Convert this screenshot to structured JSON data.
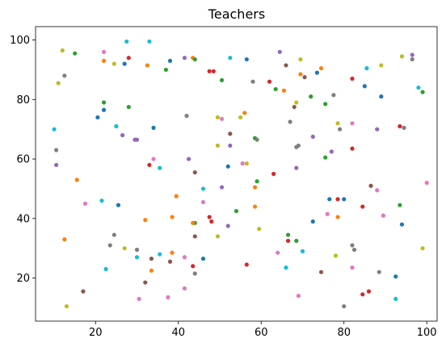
{
  "chart_data": {
    "type": "scatter",
    "title": "Teachers",
    "xlabel": "",
    "ylabel": "",
    "xlim": [
      5.5,
      102.5
    ],
    "ylim": [
      5.5,
      104.5
    ],
    "xticks": [
      20,
      40,
      60,
      80,
      100
    ],
    "yticks": [
      20,
      40,
      60,
      80,
      100
    ],
    "grid": false,
    "colors": [
      "#1f77b4",
      "#ff7f0e",
      "#2ca02c",
      "#d62728",
      "#9467bd",
      "#8c564b",
      "#e377c2",
      "#7f7f7f",
      "#bcbd22",
      "#17becf"
    ],
    "points": [
      {
        "x": 12,
        "y": 96.5,
        "c": 8
      },
      {
        "x": 15,
        "y": 95.5,
        "c": 2
      },
      {
        "x": 22,
        "y": 96,
        "c": 6
      },
      {
        "x": 27.5,
        "y": 99.5,
        "c": 9
      },
      {
        "x": 33,
        "y": 99.5,
        "c": 9
      },
      {
        "x": 11,
        "y": 85.5,
        "c": 8
      },
      {
        "x": 12.5,
        "y": 88,
        "c": 7
      },
      {
        "x": 22,
        "y": 93,
        "c": 1
      },
      {
        "x": 24.5,
        "y": 92,
        "c": 8
      },
      {
        "x": 27,
        "y": 92,
        "c": 0
      },
      {
        "x": 28,
        "y": 94,
        "c": 3
      },
      {
        "x": 32.5,
        "y": 91.5,
        "c": 1
      },
      {
        "x": 37,
        "y": 90,
        "c": 2
      },
      {
        "x": 38,
        "y": 93,
        "c": 0
      },
      {
        "x": 41.5,
        "y": 94,
        "c": 4
      },
      {
        "x": 43.5,
        "y": 94,
        "c": 1
      },
      {
        "x": 44,
        "y": 93.5,
        "c": 2
      },
      {
        "x": 47.5,
        "y": 89.5,
        "c": 3
      },
      {
        "x": 48.5,
        "y": 89.5,
        "c": 3
      },
      {
        "x": 52.5,
        "y": 94,
        "c": 9
      },
      {
        "x": 56.5,
        "y": 93.5,
        "c": 0
      },
      {
        "x": 50.5,
        "y": 86.5,
        "c": 2
      },
      {
        "x": 58,
        "y": 86,
        "c": 7
      },
      {
        "x": 62,
        "y": 86,
        "c": 3
      },
      {
        "x": 64.5,
        "y": 96,
        "c": 4
      },
      {
        "x": 66,
        "y": 91.5,
        "c": 5
      },
      {
        "x": 69.5,
        "y": 93.5,
        "c": 8
      },
      {
        "x": 73.5,
        "y": 89,
        "c": 0
      },
      {
        "x": 74.5,
        "y": 90.5,
        "c": 1
      },
      {
        "x": 69.5,
        "y": 88.5,
        "c": 1
      },
      {
        "x": 70.5,
        "y": 87.5,
        "c": 5
      },
      {
        "x": 63.5,
        "y": 83.5,
        "c": 2
      },
      {
        "x": 65.5,
        "y": 83,
        "c": 1
      },
      {
        "x": 72,
        "y": 81,
        "c": 2
      },
      {
        "x": 68.5,
        "y": 79,
        "c": 8
      },
      {
        "x": 68,
        "y": 77.5,
        "c": 5
      },
      {
        "x": 75.5,
        "y": 78.5,
        "c": 2
      },
      {
        "x": 77.5,
        "y": 81.5,
        "c": 7
      },
      {
        "x": 82,
        "y": 87,
        "c": 3
      },
      {
        "x": 85,
        "y": 84.5,
        "c": 0
      },
      {
        "x": 85.5,
        "y": 90.5,
        "c": 9
      },
      {
        "x": 89,
        "y": 91.5,
        "c": 8
      },
      {
        "x": 94,
        "y": 94.5,
        "c": 8
      },
      {
        "x": 96.5,
        "y": 95,
        "c": 4
      },
      {
        "x": 96.5,
        "y": 93.5,
        "c": 7
      },
      {
        "x": 98,
        "y": 84,
        "c": 9
      },
      {
        "x": 99,
        "y": 82.5,
        "c": 2
      },
      {
        "x": 89,
        "y": 81,
        "c": 0
      },
      {
        "x": 10,
        "y": 70,
        "c": 9
      },
      {
        "x": 20.5,
        "y": 74,
        "c": 0
      },
      {
        "x": 22,
        "y": 79,
        "c": 2
      },
      {
        "x": 22,
        "y": 76.5,
        "c": 0
      },
      {
        "x": 25,
        "y": 71,
        "c": 9
      },
      {
        "x": 28,
        "y": 77.5,
        "c": 2
      },
      {
        "x": 26.5,
        "y": 68,
        "c": 4
      },
      {
        "x": 29.5,
        "y": 66.5,
        "c": 4
      },
      {
        "x": 30,
        "y": 66.5,
        "c": 4
      },
      {
        "x": 34,
        "y": 70.5,
        "c": 0
      },
      {
        "x": 42,
        "y": 74.5,
        "c": 7
      },
      {
        "x": 49.5,
        "y": 74,
        "c": 8
      },
      {
        "x": 50.5,
        "y": 73.5,
        "c": 6
      },
      {
        "x": 52.5,
        "y": 68.5,
        "c": 5
      },
      {
        "x": 55,
        "y": 74,
        "c": 8
      },
      {
        "x": 56,
        "y": 75.5,
        "c": 1
      },
      {
        "x": 58.5,
        "y": 67,
        "c": 2
      },
      {
        "x": 59,
        "y": 66.5,
        "c": 7
      },
      {
        "x": 67,
        "y": 72.5,
        "c": 7
      },
      {
        "x": 68.5,
        "y": 64,
        "c": 7
      },
      {
        "x": 69,
        "y": 64.5,
        "c": 7
      },
      {
        "x": 72.5,
        "y": 67.5,
        "c": 4
      },
      {
        "x": 77,
        "y": 62.5,
        "c": 4
      },
      {
        "x": 78.5,
        "y": 72,
        "c": 8
      },
      {
        "x": 79,
        "y": 70,
        "c": 7
      },
      {
        "x": 82,
        "y": 72,
        "c": 6
      },
      {
        "x": 75.5,
        "y": 60.5,
        "c": 2
      },
      {
        "x": 82,
        "y": 63.5,
        "c": 3
      },
      {
        "x": 88,
        "y": 70,
        "c": 4
      },
      {
        "x": 93.5,
        "y": 71,
        "c": 3
      },
      {
        "x": 94.5,
        "y": 70.5,
        "c": 7
      },
      {
        "x": 10.5,
        "y": 63,
        "c": 7
      },
      {
        "x": 10.5,
        "y": 58,
        "c": 4
      },
      {
        "x": 15.5,
        "y": 53,
        "c": 1
      },
      {
        "x": 33,
        "y": 58,
        "c": 3
      },
      {
        "x": 34,
        "y": 60,
        "c": 6
      },
      {
        "x": 35.5,
        "y": 57,
        "c": 9
      },
      {
        "x": 42.5,
        "y": 60,
        "c": 4
      },
      {
        "x": 44,
        "y": 55.5,
        "c": 5
      },
      {
        "x": 46,
        "y": 50,
        "c": 9
      },
      {
        "x": 49.5,
        "y": 64.5,
        "c": 8
      },
      {
        "x": 52.5,
        "y": 64.5,
        "c": 4
      },
      {
        "x": 50.5,
        "y": 50.5,
        "c": 4
      },
      {
        "x": 52,
        "y": 57.5,
        "c": 0
      },
      {
        "x": 55.5,
        "y": 58.5,
        "c": 6
      },
      {
        "x": 56.5,
        "y": 58.5,
        "c": 8
      },
      {
        "x": 59,
        "y": 52.5,
        "c": 2
      },
      {
        "x": 58.5,
        "y": 50.5,
        "c": 1
      },
      {
        "x": 63,
        "y": 55,
        "c": 3
      },
      {
        "x": 68.5,
        "y": 57,
        "c": 4
      },
      {
        "x": 17.5,
        "y": 45,
        "c": 6
      },
      {
        "x": 21.5,
        "y": 46,
        "c": 9
      },
      {
        "x": 25.5,
        "y": 44.5,
        "c": 0
      },
      {
        "x": 39.5,
        "y": 47.5,
        "c": 1
      },
      {
        "x": 38.5,
        "y": 40.5,
        "c": 1
      },
      {
        "x": 46,
        "y": 45.5,
        "c": 6
      },
      {
        "x": 47.5,
        "y": 40.5,
        "c": 3
      },
      {
        "x": 48,
        "y": 39,
        "c": 3
      },
      {
        "x": 44,
        "y": 38.5,
        "c": 2
      },
      {
        "x": 43.5,
        "y": 38.5,
        "c": 1
      },
      {
        "x": 54,
        "y": 42.5,
        "c": 2
      },
      {
        "x": 58.5,
        "y": 44,
        "c": 1
      },
      {
        "x": 59.5,
        "y": 36.5,
        "c": 8
      },
      {
        "x": 52,
        "y": 37.5,
        "c": 4
      },
      {
        "x": 76.5,
        "y": 46.5,
        "c": 0
      },
      {
        "x": 78.5,
        "y": 46.5,
        "c": 3
      },
      {
        "x": 80,
        "y": 46.5,
        "c": 0
      },
      {
        "x": 76,
        "y": 41.5,
        "c": 6
      },
      {
        "x": 78.5,
        "y": 40.5,
        "c": 1
      },
      {
        "x": 72.5,
        "y": 39,
        "c": 0
      },
      {
        "x": 84.5,
        "y": 44,
        "c": 3
      },
      {
        "x": 86.5,
        "y": 51,
        "c": 5
      },
      {
        "x": 88,
        "y": 49.5,
        "c": 6
      },
      {
        "x": 89.5,
        "y": 41,
        "c": 6
      },
      {
        "x": 93.5,
        "y": 44.5,
        "c": 2
      },
      {
        "x": 94,
        "y": 38,
        "c": 0
      },
      {
        "x": 100,
        "y": 52,
        "c": 6
      },
      {
        "x": 12.5,
        "y": 33,
        "c": 1
      },
      {
        "x": 23.5,
        "y": 31,
        "c": 7
      },
      {
        "x": 24.5,
        "y": 34.5,
        "c": 7
      },
      {
        "x": 27,
        "y": 30,
        "c": 8
      },
      {
        "x": 30,
        "y": 29.5,
        "c": 7
      },
      {
        "x": 32,
        "y": 39.5,
        "c": 1
      },
      {
        "x": 30,
        "y": 27,
        "c": 9
      },
      {
        "x": 33.5,
        "y": 26.5,
        "c": 5
      },
      {
        "x": 35.5,
        "y": 28,
        "c": 9
      },
      {
        "x": 38.5,
        "y": 28.5,
        "c": 1
      },
      {
        "x": 38,
        "y": 25.5,
        "c": 5
      },
      {
        "x": 41.5,
        "y": 27,
        "c": 6
      },
      {
        "x": 44,
        "y": 34,
        "c": 5
      },
      {
        "x": 46,
        "y": 26.5,
        "c": 0
      },
      {
        "x": 49.5,
        "y": 34,
        "c": 8
      },
      {
        "x": 22.5,
        "y": 23,
        "c": 9
      },
      {
        "x": 33.5,
        "y": 22.5,
        "c": 1
      },
      {
        "x": 32,
        "y": 18.5,
        "c": 5
      },
      {
        "x": 43.5,
        "y": 24,
        "c": 3
      },
      {
        "x": 44,
        "y": 21.5,
        "c": 7
      },
      {
        "x": 41.5,
        "y": 16.5,
        "c": 6
      },
      {
        "x": 17,
        "y": 15.5,
        "c": 5
      },
      {
        "x": 30.5,
        "y": 13,
        "c": 6
      },
      {
        "x": 37.5,
        "y": 13.5,
        "c": 6
      },
      {
        "x": 13,
        "y": 10.5,
        "c": 8
      },
      {
        "x": 56.5,
        "y": 24.5,
        "c": 3
      },
      {
        "x": 64,
        "y": 28.5,
        "c": 6
      },
      {
        "x": 66.5,
        "y": 34.5,
        "c": 2
      },
      {
        "x": 66.5,
        "y": 32.5,
        "c": 3
      },
      {
        "x": 68.5,
        "y": 32.5,
        "c": 2
      },
      {
        "x": 70,
        "y": 29,
        "c": 9
      },
      {
        "x": 66,
        "y": 23.5,
        "c": 9
      },
      {
        "x": 74.5,
        "y": 22,
        "c": 5
      },
      {
        "x": 78,
        "y": 27.5,
        "c": 8
      },
      {
        "x": 82,
        "y": 31,
        "c": 7
      },
      {
        "x": 82.5,
        "y": 29.5,
        "c": 7
      },
      {
        "x": 82,
        "y": 23.5,
        "c": 6
      },
      {
        "x": 88.5,
        "y": 22,
        "c": 7
      },
      {
        "x": 92.5,
        "y": 20.5,
        "c": 0
      },
      {
        "x": 84.5,
        "y": 14.5,
        "c": 3
      },
      {
        "x": 86,
        "y": 15.5,
        "c": 3
      },
      {
        "x": 92.5,
        "y": 13,
        "c": 9
      },
      {
        "x": 69,
        "y": 14,
        "c": 6
      },
      {
        "x": 80,
        "y": 10.5,
        "c": 7
      },
      {
        "x": 99,
        "y": 30,
        "c": 8
      }
    ]
  }
}
